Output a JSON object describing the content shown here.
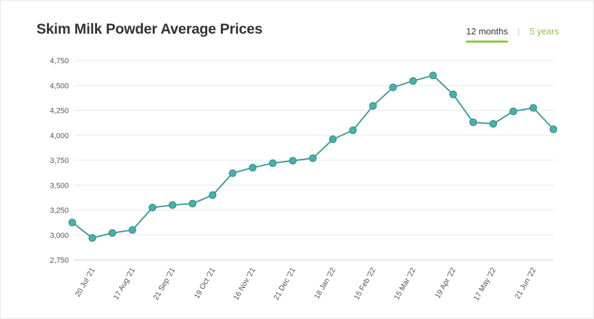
{
  "header": {
    "title": "Skim Milk Powder Average Prices"
  },
  "tabs": [
    {
      "label": "12 months",
      "active": true
    },
    {
      "label": "5 years",
      "active": false
    }
  ],
  "colors": {
    "line": "#3d9c97",
    "marker_fill": "#48b0aa",
    "tab_accent": "#8dc63f",
    "grid": "#e5e5e5"
  },
  "chart_data": {
    "type": "line",
    "title": "Skim Milk Powder Average Prices",
    "xlabel": "",
    "ylabel": "",
    "ylim": [
      2750,
      4750
    ],
    "yticks": [
      "2,750",
      "3,000",
      "3,250",
      "3,500",
      "3,750",
      "4,000",
      "4,250",
      "4,500",
      "4,750"
    ],
    "ytick_values": [
      2750,
      3000,
      3250,
      3500,
      3750,
      4000,
      4250,
      4500,
      4750
    ],
    "x_tick_labels": [
      "20 Jul '21",
      "17 Aug '21",
      "21 Sep '21",
      "19 Oct '21",
      "16 Nov '21",
      "21 Dec '21",
      "18 Jan '22",
      "15 Feb '22",
      "15 Mar '22",
      "19 Apr '22",
      "17 May '22",
      "21 Jun '22"
    ],
    "x_tick_point_index": [
      1,
      3,
      5,
      7,
      9,
      11,
      13,
      15,
      17,
      19,
      21,
      23
    ],
    "grid": true,
    "legend": "none",
    "values": [
      3125,
      2970,
      3020,
      3050,
      3275,
      3300,
      3315,
      3400,
      3620,
      3675,
      3720,
      3745,
      3770,
      3960,
      4050,
      4295,
      4480,
      4545,
      4600,
      4410,
      4130,
      4115,
      4240,
      4275,
      4060
    ]
  }
}
